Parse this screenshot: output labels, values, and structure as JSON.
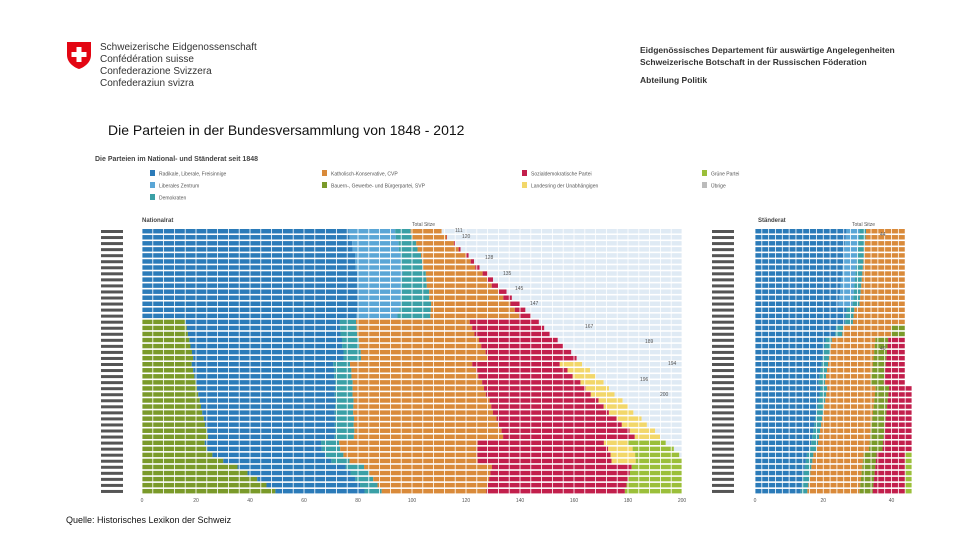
{
  "header": {
    "federation": [
      "Schweizerische Eidgenossenschaft",
      "Confédération suisse",
      "Confederazione Svizzera",
      "Confederaziun svizra"
    ],
    "department": [
      "Eidgenössisches Departement für auswärtige Angelegenheiten",
      "Schweizerische Botschaft in der Russischen Föderation"
    ],
    "division": "Abteilung Politik"
  },
  "slide_title": "Die Parteien in der Bundesversammlung von 1848 - 2012",
  "source": "Quelle: Historisches Lexikon der Schweiz",
  "colors": {
    "swiss_red": "#e30613",
    "liberal": "#2b7bb9",
    "liberal_light": "#8cc3e0",
    "left_center": "#5aa6d6",
    "democrats": "#3aa0a6",
    "catholic": "#d98a3a",
    "catholic_light": "#f2b25e",
    "farmers": "#7a9a2a",
    "socialist": "#c21f4c",
    "social_dark": "#8a1a3a",
    "independents": "#f2d76a",
    "greens": "#9bbf3a",
    "others": "#bbbbbb"
  },
  "chart_data": {
    "type": "bar",
    "title": "Die Parteien im National- und Ständerat seit 1848",
    "panels": [
      {
        "name": "Nationalrat",
        "xlim": [
          0,
          200
        ],
        "x_ticks": [
          "0",
          "20",
          "40",
          "60",
          "80",
          "100",
          "120",
          "140",
          "160",
          "180",
          "200"
        ],
        "total_label": "Total Sitze",
        "total_values": [
          "111",
          "120",
          "128",
          "135",
          "145",
          "147",
          "167",
          "189",
          "194",
          "196",
          "200"
        ],
        "rows": 44,
        "series": [
          "liberal",
          "left_center",
          "democrats",
          "catholic",
          "farmers",
          "socialist",
          "independents",
          "greens",
          "others"
        ]
      },
      {
        "name": "Ständerat",
        "xlim": [
          0,
          46
        ],
        "x_ticks": [
          "0",
          "20",
          "40"
        ],
        "total_label": "Total Sitze",
        "total_values": [
          "44",
          "46"
        ],
        "rows": 44,
        "series": [
          "liberal",
          "left_center",
          "democrats",
          "catholic",
          "farmers",
          "socialist",
          "greens",
          "others"
        ]
      }
    ],
    "legend": [
      "Radikale, Liberale, Freisinnige",
      "Liberales Zentrum",
      "Demokraten",
      "Katholisch-Konservative, CVP",
      "Bauern-, Gewerbe- und Bürgerpartei, SVP",
      "Sozialdemokratische Partei",
      "Landesring der Unabhängigen",
      "Grüne Partei",
      "Übrige"
    ],
    "legend_placement": "top"
  }
}
